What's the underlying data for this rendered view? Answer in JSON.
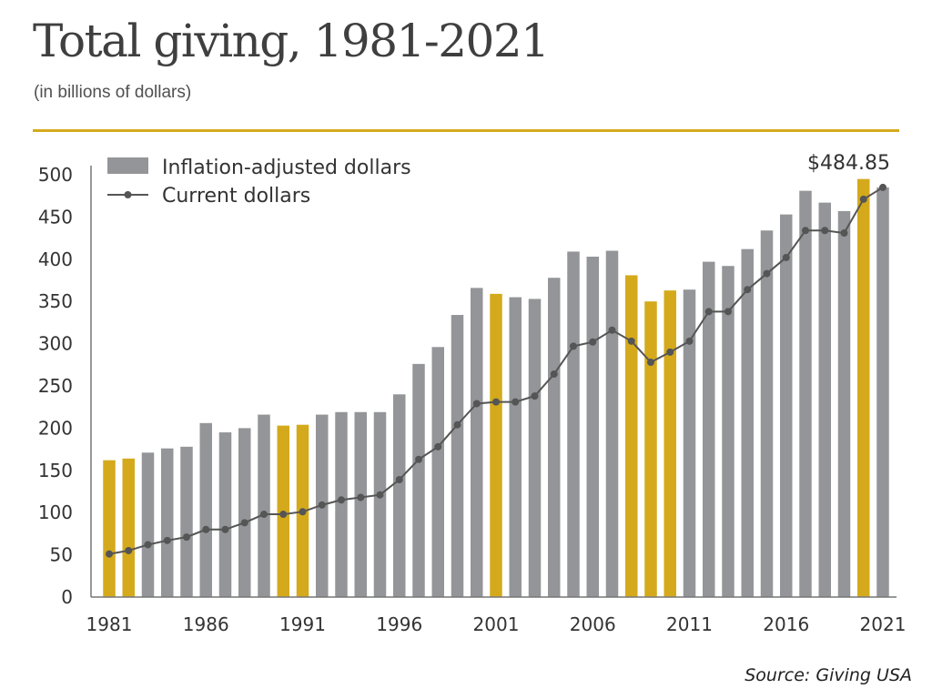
{
  "title": "Total giving, 1981-2021",
  "subtitle": "(in billions of dollars)",
  "source": "Source: Giving USA",
  "colors": {
    "accent_rule": "#d4aa1c",
    "bar_gray": "#939598",
    "bar_highlight": "#d4aa1c",
    "line": "#555555"
  },
  "chart_data": {
    "type": "bar",
    "title": "",
    "xlabel": "",
    "ylabel": "",
    "ylim": [
      0,
      500
    ],
    "yticks": [
      "0",
      "50",
      "100",
      "150",
      "200",
      "250",
      "300",
      "350",
      "400",
      "450",
      "500"
    ],
    "xticks": [
      "1981",
      "1986",
      "1991",
      "1996",
      "2001",
      "2006",
      "2011",
      "2016",
      "2021"
    ],
    "legend": [
      "Inflation-adjusted dollars",
      "Current dollars"
    ],
    "legend_position": "top-left",
    "grid": false,
    "annotation": "$484.85",
    "years": [
      1981,
      1982,
      1983,
      1984,
      1985,
      1986,
      1987,
      1988,
      1989,
      1990,
      1991,
      1992,
      1993,
      1994,
      1995,
      1996,
      1997,
      1998,
      1999,
      2000,
      2001,
      2002,
      2003,
      2004,
      2005,
      2006,
      2007,
      2008,
      2009,
      2010,
      2011,
      2012,
      2013,
      2014,
      2015,
      2016,
      2017,
      2018,
      2019,
      2020,
      2021
    ],
    "highlighted_years": [
      1981,
      1982,
      1990,
      1991,
      2001,
      2008,
      2009,
      2010,
      2020
    ],
    "series": [
      {
        "name": "Inflation-adjusted dollars",
        "kind": "bar",
        "values": [
          162,
          164,
          171,
          176,
          178,
          206,
          195,
          200,
          216,
          203,
          204,
          216,
          219,
          219,
          219,
          240,
          276,
          296,
          334,
          366,
          359,
          355,
          353,
          378,
          409,
          403,
          410,
          381,
          350,
          363,
          364,
          397,
          392,
          412,
          434,
          453,
          481,
          467,
          457,
          495,
          485
        ]
      },
      {
        "name": "Current dollars",
        "kind": "line",
        "values": [
          51,
          55,
          62,
          67,
          71,
          80,
          80,
          88,
          98,
          98,
          101,
          109,
          115,
          118,
          121,
          139,
          163,
          178,
          204,
          229,
          231,
          231,
          238,
          264,
          297,
          302,
          316,
          303,
          278,
          290,
          303,
          338,
          338,
          364,
          383,
          402,
          434,
          434,
          431,
          471,
          485
        ]
      }
    ]
  }
}
